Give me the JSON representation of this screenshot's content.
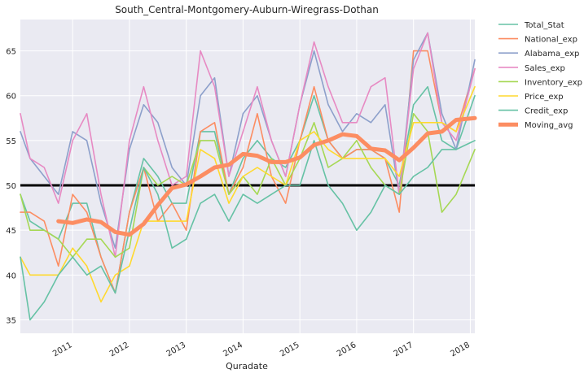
{
  "chart_data": {
    "type": "line",
    "title": "South_Central-Montgomery-Auburn-Wiregrass-Dothan",
    "xlabel": "Quradate",
    "ylabel": "",
    "ylim": [
      33.5,
      68.5
    ],
    "xlim": [
      2010.08,
      2018.08
    ],
    "grid": true,
    "legend_position": "outside-right",
    "x_ticks": [
      2011,
      2012,
      2013,
      2014,
      2015,
      2016,
      2017,
      2018
    ],
    "x_tick_labels": [
      "2011",
      "2012",
      "2013",
      "2014",
      "2015",
      "2016",
      "2017",
      "2018"
    ],
    "y_ticks": [
      35,
      40,
      45,
      50,
      55,
      60,
      65
    ],
    "y_tick_labels": [
      "35",
      "40",
      "45",
      "50",
      "55",
      "60",
      "65"
    ],
    "reference_line": {
      "y": 50,
      "color": "#000000"
    },
    "x": [
      2010.08,
      2010.25,
      2010.5,
      2010.75,
      2011.0,
      2011.25,
      2011.5,
      2011.75,
      2012.0,
      2012.25,
      2012.5,
      2012.75,
      2013.0,
      2013.25,
      2013.5,
      2013.75,
      2014.0,
      2014.25,
      2014.5,
      2014.75,
      2015.0,
      2015.25,
      2015.5,
      2015.75,
      2016.0,
      2016.25,
      2016.5,
      2016.75,
      2017.0,
      2017.25,
      2017.5,
      2017.75,
      2018.08
    ],
    "series": [
      {
        "name": "Total_Stat",
        "color": "#66c2a5",
        "width": 1.6,
        "values": [
          49,
          46,
          45,
          44,
          48,
          48,
          42,
          38,
          47,
          53,
          51,
          48,
          48,
          56,
          56,
          49,
          53,
          55,
          53,
          52,
          55,
          60,
          55,
          53,
          54,
          54,
          53,
          50,
          59,
          61,
          55,
          54,
          60
        ]
      },
      {
        "name": "National_exp",
        "color": "#fc8d62",
        "width": 1.6,
        "values": [
          47,
          47,
          46,
          41,
          49,
          47,
          42,
          38,
          47,
          52,
          46,
          48,
          45,
          56,
          57,
          49,
          52,
          58,
          51,
          48,
          55,
          61,
          55,
          53,
          54,
          54,
          53,
          47,
          65,
          65,
          57,
          56,
          63
        ]
      },
      {
        "name": "Alabama_exp",
        "color": "#8da0cb",
        "width": 1.6,
        "values": [
          56,
          53,
          51,
          49,
          56,
          55,
          48,
          43,
          54,
          59,
          57,
          52,
          50,
          60,
          62,
          51,
          58,
          60,
          55,
          51,
          59,
          65,
          59,
          56,
          58,
          57,
          59,
          49,
          64,
          67,
          58,
          54,
          64
        ]
      },
      {
        "name": "Sales_exp",
        "color": "#e78ac3",
        "width": 1.6,
        "values": [
          58,
          53,
          52,
          48,
          55,
          58,
          49,
          42,
          55,
          61,
          55,
          50,
          51,
          65,
          61,
          51,
          56,
          61,
          55,
          51,
          59,
          66,
          61,
          57,
          57,
          61,
          62,
          49,
          63,
          67,
          57,
          55,
          63
        ]
      },
      {
        "name": "Inventory_exp",
        "color": "#a6d854",
        "width": 1.6,
        "values": [
          49,
          45,
          45,
          44,
          42,
          44,
          44,
          42,
          43,
          52,
          50,
          51,
          50,
          55,
          55,
          49,
          51,
          49,
          53,
          50,
          53,
          57,
          52,
          53,
          55,
          52,
          50,
          49,
          58,
          56,
          47,
          49,
          54
        ]
      },
      {
        "name": "Price_exp",
        "color": "#ffd92f",
        "width": 1.6,
        "values": [
          42,
          40,
          40,
          40,
          43,
          41,
          37,
          40,
          41,
          46,
          46,
          46,
          46,
          54,
          53,
          48,
          51,
          52,
          51,
          50,
          55,
          56,
          54,
          53,
          53,
          53,
          53,
          51,
          57,
          57,
          57,
          56,
          61
        ]
      },
      {
        "name": "Credit_exp",
        "color": "#66c2a5",
        "width": 1.6,
        "values": [
          42,
          35,
          37,
          40,
          42,
          40,
          41,
          38,
          45,
          52,
          49,
          43,
          44,
          48,
          49,
          46,
          49,
          48,
          49,
          50,
          50,
          55,
          50,
          48,
          45,
          47,
          50,
          49,
          51,
          52,
          54,
          54,
          55
        ]
      },
      {
        "name": "Moving_avg",
        "color": "#fc8d62",
        "width": 5,
        "values": [
          null,
          null,
          null,
          46.0,
          45.8,
          46.2,
          45.9,
          44.8,
          44.5,
          45.7,
          47.8,
          49.7,
          50.1,
          51.0,
          52.0,
          52.3,
          53.5,
          53.3,
          52.6,
          52.6,
          53.1,
          54.5,
          55.0,
          55.7,
          55.5,
          54.1,
          53.9,
          52.8,
          54.2,
          55.8,
          56.0,
          57.3,
          57.5
        ]
      }
    ]
  }
}
